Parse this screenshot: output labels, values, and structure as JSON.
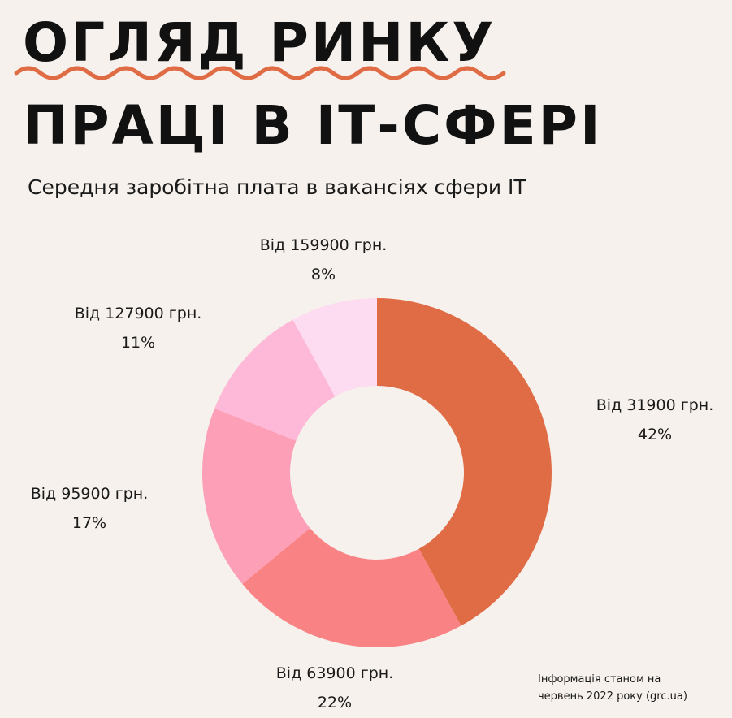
{
  "header": {
    "title_line1": "ОГЛЯД РИНКУ",
    "title_line2": "ПРАЦІ В ІТ-СФЕРІ",
    "subtitle": "Середня заробітна плата в вакансіях сфери IT"
  },
  "chart_data": {
    "type": "pie",
    "donut": true,
    "title": "Середня заробітна плата в вакансіях сфери IT",
    "slices": [
      {
        "label": "Від 31900 грн.",
        "value": 42,
        "pct_text": "42%",
        "color": "#e06c46"
      },
      {
        "label": "Від 63900 грн.",
        "value": 22,
        "pct_text": "22%",
        "color": "#f98284"
      },
      {
        "label": "Від 95900 грн.",
        "value": 17,
        "pct_text": "17%",
        "color": "#fd9fb7"
      },
      {
        "label": "Від 127900 грн.",
        "value": 11,
        "pct_text": "11%",
        "color": "#feb8d8"
      },
      {
        "label": "Від 159900 грн.",
        "value": 8,
        "pct_text": "8%",
        "color": "#fddcf2"
      }
    ],
    "legend": "none"
  },
  "footnote": {
    "line1": "Інформація станом на",
    "line2": "червень 2022 року (grc.ua)"
  },
  "colors": {
    "background": "#f6f1ec",
    "accent_squiggle": "#e06c46"
  }
}
